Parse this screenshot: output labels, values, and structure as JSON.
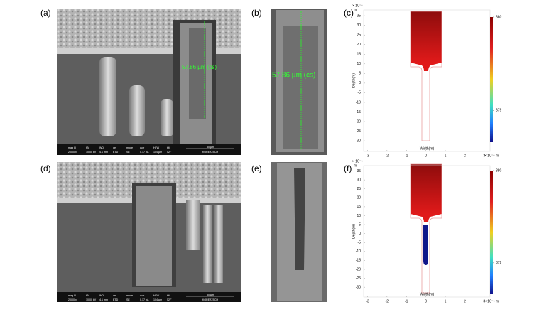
{
  "panel_labels": [
    "(a)",
    "(b)",
    "(c)",
    "(d)",
    "(e)",
    "(f)"
  ],
  "annotations": [
    "57.86 µm (cs)",
    "57.86 µm (cs)"
  ],
  "sem_info": [
    {
      "fields": [
        "mag ⊞",
        "HV",
        "WD",
        "det",
        "mode",
        "curr",
        "HFW",
        "tilt"
      ],
      "values": [
        "2 000 x",
        "10.00 kV",
        "4.1 mm",
        "ETD",
        "SE",
        "0.17 nA",
        "104 µm",
        "52 °"
      ],
      "scale": "30 µm",
      "brand": "KOREATECH"
    },
    {
      "fields": [
        "mag ⊞",
        "HV",
        "WD",
        "det",
        "mode",
        "curr",
        "HFW",
        "tilt"
      ],
      "values": [
        "2 000 x",
        "10.00 kV",
        "4.1 mm",
        "ETD",
        "SE",
        "0.17 nA",
        "104 µm",
        "52 °"
      ],
      "scale": "30 µm",
      "brand": "KOREATECH"
    }
  ],
  "plots": [
    {
      "type": "contour",
      "xlabel": "Width(m)",
      "ylabel": "Depth(m)",
      "x_exponent": "× 10⁻⁶ m",
      "y_exponent": "× 10⁻⁶",
      "y_unit": "m",
      "xlim": [
        -3.2,
        3.3
      ],
      "ylim": [
        -35.5,
        38
      ],
      "xticks": [
        -3,
        -2,
        -1,
        0,
        1,
        2,
        3
      ],
      "yticks": [
        35,
        30,
        25,
        20,
        15,
        10,
        5,
        0,
        -5,
        -10,
        -15,
        -20,
        -25,
        -30
      ],
      "clim": [
        878.66,
        880
      ],
      "cticks": [
        880,
        879
      ]
    },
    {
      "type": "contour",
      "xlabel": "Width(m)",
      "ylabel": "Depth(m)",
      "x_exponent": "× 10⁻⁶ m",
      "y_exponent": "× 10⁻⁶",
      "y_unit": "m",
      "xlim": [
        -3.2,
        3.3
      ],
      "ylim": [
        -35.5,
        38
      ],
      "xticks": [
        -3,
        -2,
        -1,
        0,
        1,
        2,
        3
      ],
      "yticks": [
        35,
        30,
        25,
        20,
        15,
        10,
        5,
        0,
        -5,
        -10,
        -15,
        -20,
        -25,
        -30
      ],
      "clim": [
        878.66,
        880
      ],
      "cticks": [
        880,
        879
      ]
    }
  ]
}
